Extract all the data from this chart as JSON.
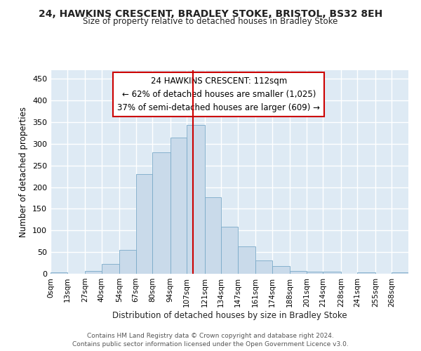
{
  "title": "24, HAWKINS CRESCENT, BRADLEY STOKE, BRISTOL, BS32 8EH",
  "subtitle": "Size of property relative to detached houses in Bradley Stoke",
  "xlabel": "Distribution of detached houses by size in Bradley Stoke",
  "ylabel": "Number of detached properties",
  "bar_color": "#c9daea",
  "bar_edgecolor": "#7aaac8",
  "plot_bg_color": "#deeaf4",
  "fig_bg_color": "#ffffff",
  "grid_color": "#ffffff",
  "annotation_box_text": "24 HAWKINS CRESCENT: 112sqm\n← 62% of detached houses are smaller (1,025)\n37% of semi-detached houses are larger (609) →",
  "annotation_box_edgecolor": "#cc0000",
  "annotation_box_facecolor": "#ffffff",
  "vline_x": 112,
  "vline_color": "#cc0000",
  "bin_edges": [
    0,
    13,
    27,
    40,
    54,
    67,
    80,
    94,
    107,
    121,
    134,
    147,
    161,
    174,
    188,
    201,
    214,
    228,
    241,
    255,
    268,
    281
  ],
  "xtick_labels": [
    "0sqm",
    "13sqm",
    "27sqm",
    "40sqm",
    "54sqm",
    "67sqm",
    "80sqm",
    "94sqm",
    "107sqm",
    "121sqm",
    "134sqm",
    "147sqm",
    "161sqm",
    "174sqm",
    "188sqm",
    "201sqm",
    "214sqm",
    "228sqm",
    "241sqm",
    "255sqm",
    "268sqm"
  ],
  "values": [
    4,
    0,
    7,
    22,
    55,
    230,
    280,
    315,
    343,
    176,
    108,
    63,
    31,
    18,
    7,
    5,
    5,
    0,
    4,
    0,
    4
  ],
  "ylim": [
    0,
    470
  ],
  "yticks": [
    0,
    50,
    100,
    150,
    200,
    250,
    300,
    350,
    400,
    450
  ],
  "footer1": "Contains HM Land Registry data © Crown copyright and database right 2024.",
  "footer2": "Contains public sector information licensed under the Open Government Licence v3.0."
}
